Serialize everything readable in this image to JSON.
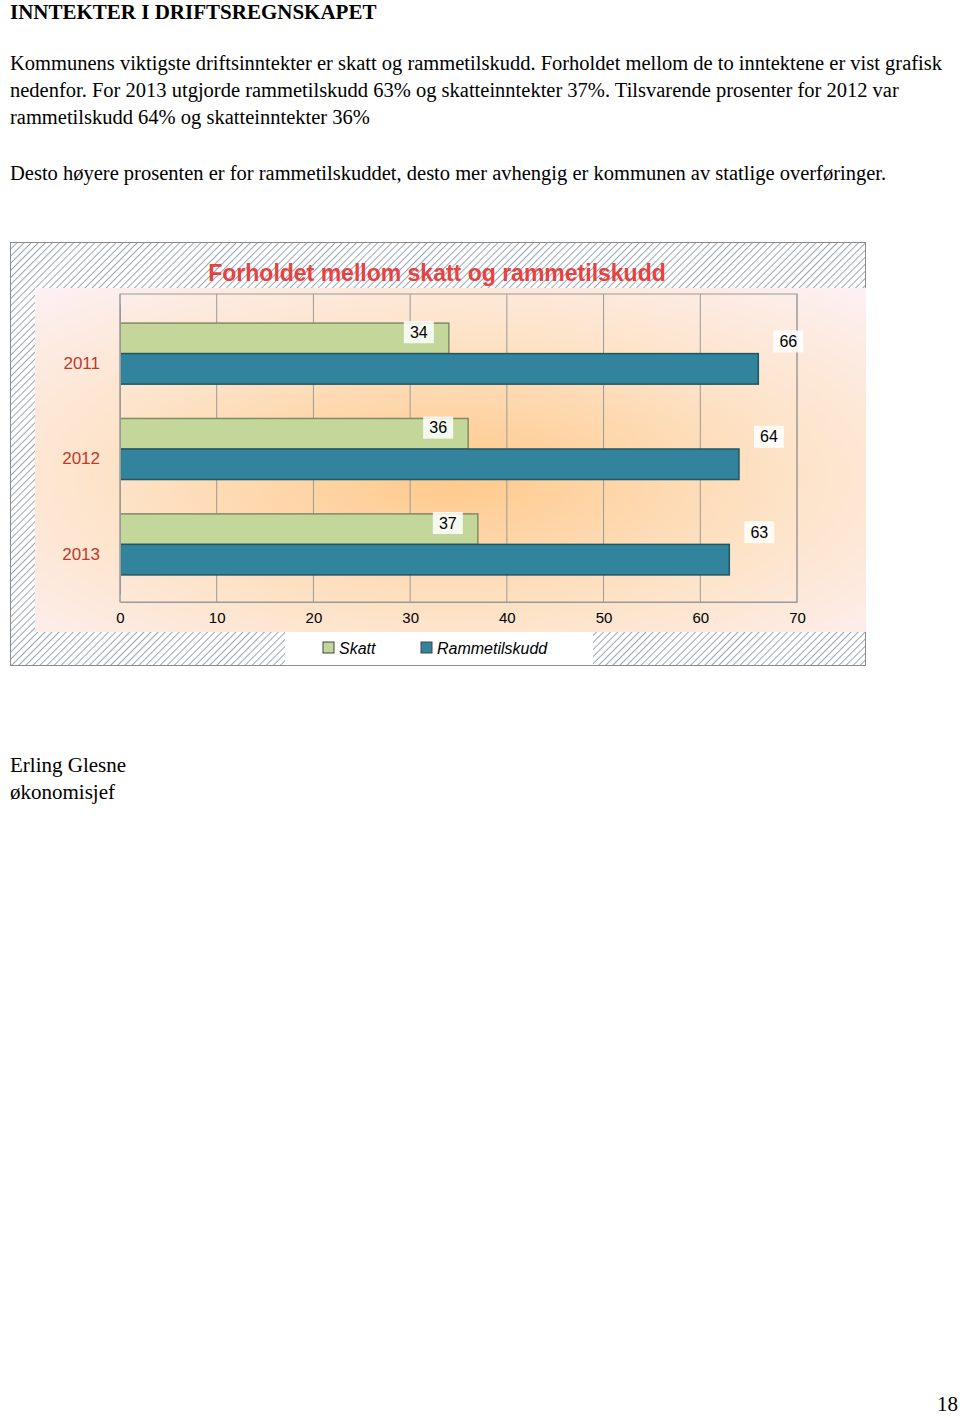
{
  "heading": "INNTEKTER I DRIFTSREGNSKAPET",
  "paragraphs": [
    "Kommunens viktigste driftsinntekter er skatt og rammetilskudd. Forholdet mellom de to inntektene er vist grafisk nedenfor. For 2013 utgjorde rammetilskudd 63% og skatteinntekter 37%. Tilsvarende prosenter for 2012 var rammetilskudd 64% og skatteinntekter 36%",
    "Desto høyere prosenten er for rammetilskuddet, desto mer avhengig er kommunen av statlige overføringer."
  ],
  "chart_data": {
    "type": "bar",
    "orientation": "horizontal",
    "title": "Forholdet mellom skatt og rammetilskudd",
    "categories": [
      "2011",
      "2012",
      "2013"
    ],
    "series": [
      {
        "name": "Skatt",
        "color": "#c4d79b",
        "values": [
          34,
          36,
          37
        ]
      },
      {
        "name": "Rammetilskudd",
        "color": "#31849b",
        "values": [
          66,
          64,
          63
        ]
      }
    ],
    "xlim": [
      0,
      70
    ],
    "xticks": [
      0,
      10,
      20,
      30,
      40,
      50,
      60,
      70
    ],
    "grid": true,
    "legend": "bottom",
    "data_labels": true
  },
  "signature": [
    "Erling Glesne",
    "økonomisjef"
  ],
  "page_number": 18
}
